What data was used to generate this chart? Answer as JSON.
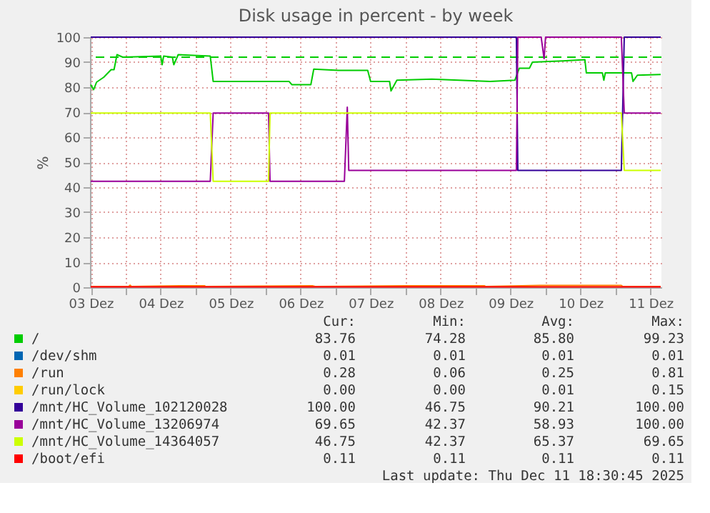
{
  "chart_data": {
    "type": "line",
    "title": "Disk usage in percent - by week",
    "ylabel": "%",
    "xlim": [
      "2025-12-03T11:45",
      "2025-12-11T15:45"
    ],
    "xticks": [
      {
        "value": "2025-12-03T12:00",
        "label": "03 Dez"
      },
      {
        "value": "2025-12-04T00:00",
        "label": null
      },
      {
        "value": "2025-12-04T12:00",
        "label": "04 Dez"
      },
      {
        "value": "2025-12-05T00:00",
        "label": null
      },
      {
        "value": "2025-12-05T12:00",
        "label": "05 Dez"
      },
      {
        "value": "2025-12-06T00:00",
        "label": null
      },
      {
        "value": "2025-12-06T12:00",
        "label": "06 Dez"
      },
      {
        "value": "2025-12-07T00:00",
        "label": null
      },
      {
        "value": "2025-12-07T12:00",
        "label": "07 Dez"
      },
      {
        "value": "2025-12-08T00:00",
        "label": null
      },
      {
        "value": "2025-12-08T12:00",
        "label": "08 Dez"
      },
      {
        "value": "2025-12-09T00:00",
        "label": null
      },
      {
        "value": "2025-12-09T12:00",
        "label": "09 Dez"
      },
      {
        "value": "2025-12-10T00:00",
        "label": null
      },
      {
        "value": "2025-12-10T12:00",
        "label": "10 Dez"
      },
      {
        "value": "2025-12-11T00:00",
        "label": null
      },
      {
        "value": "2025-12-11T12:00",
        "label": "11 Dez"
      }
    ],
    "ylim": [
      0,
      100
    ],
    "yticks": [
      0,
      10,
      20,
      30,
      40,
      50,
      60,
      70,
      80,
      90,
      100
    ],
    "grid": true,
    "legend": "bottom",
    "line_style": "solid",
    "marker": "none",
    "series": [
      {
        "name": "/",
        "color": "#00cc00",
        "x": [
          "2025-12-03T12:00",
          "2025-12-03T13:00",
          "2025-12-03T14:00",
          "2025-12-03T16:30",
          "2025-12-03T19:00",
          "2025-12-03T20:00",
          "2025-12-03T21:00",
          "2025-12-03T23:00",
          "2025-12-04T12:00",
          "2025-12-04T12:30",
          "2025-12-04T13:00",
          "2025-12-04T16:00",
          "2025-12-04T16:30",
          "2025-12-04T18:00",
          "2025-12-05T05:00",
          "2025-12-05T06:00",
          "2025-12-05T22:30",
          "2025-12-06T08:00",
          "2025-12-06T09:00",
          "2025-12-06T15:30",
          "2025-12-06T16:30",
          "2025-12-07T01:00",
          "2025-12-07T11:00",
          "2025-12-07T12:00",
          "2025-12-07T18:30",
          "2025-12-07T19:00",
          "2025-12-07T21:00",
          "2025-12-08T09:00",
          "2025-12-09T05:00",
          "2025-12-09T13:30",
          "2025-12-09T15:00",
          "2025-12-09T18:30",
          "2025-12-09T19:30",
          "2025-12-10T06:00",
          "2025-12-10T13:30",
          "2025-12-10T14:00",
          "2025-12-10T19:30",
          "2025-12-10T20:00",
          "2025-12-10T20:30",
          "2025-12-11T02:30",
          "2025-12-11T05:30",
          "2025-12-11T06:00",
          "2025-12-11T07:30",
          "2025-12-11T15:30"
        ],
        "values": [
          81,
          79,
          82,
          84,
          87,
          87,
          93,
          92,
          92.4,
          89,
          92.4,
          92,
          89,
          93,
          92.4,
          82.3,
          82.3,
          82.3,
          81,
          81,
          87.2,
          86.7,
          86.7,
          82.3,
          82.3,
          78.5,
          82.8,
          83.2,
          82.3,
          82.8,
          87.6,
          87.6,
          90,
          90.5,
          91,
          85.7,
          85.7,
          82.8,
          85.7,
          85.7,
          85.7,
          82.3,
          84.8,
          85.1
        ]
      },
      {
        "name": "/dev/shm",
        "color": "#0066b3"
      },
      {
        "name": "/run",
        "color": "#ff8000",
        "x": [
          "2025-12-03T12:00",
          "2025-12-04T01:00",
          "2025-12-04T01:30",
          "2025-12-04T02:00",
          "2025-12-04T18:30",
          "2025-12-05T03:00",
          "2025-12-05T03:30",
          "2025-12-06T16:00",
          "2025-12-06T17:00",
          "2025-12-08T00:00",
          "2025-12-09T03:00",
          "2025-12-09T03:30",
          "2025-12-09T22:00",
          "2025-12-11T02:00",
          "2025-12-11T02:30",
          "2025-12-11T15:30"
        ],
        "values": [
          0.28,
          0.28,
          0.81,
          0.28,
          0.6,
          0.6,
          0.28,
          0.6,
          0.28,
          0.6,
          0.6,
          0.28,
          0.7,
          0.7,
          0.28,
          0.28
        ]
      },
      {
        "name": "/run/lock",
        "color": "#ffcc00"
      },
      {
        "name": "/mnt/HC_Volume_102120028",
        "color": "#330099",
        "x": [
          "2025-12-03T12:00",
          "2025-12-09T14:00",
          "2025-12-09T14:30",
          "2025-12-11T02:00",
          "2025-12-11T03:00",
          "2025-12-11T15:30"
        ],
        "values": [
          100,
          100,
          46.75,
          46.75,
          100,
          100
        ]
      },
      {
        "name": "/mnt/HC_Volume_13206974",
        "color": "#990099",
        "x": [
          "2025-12-03T12:00",
          "2025-12-05T05:00",
          "2025-12-05T06:00",
          "2025-12-06T01:00",
          "2025-12-06T01:30",
          "2025-12-07T03:00",
          "2025-12-07T04:00",
          "2025-12-07T04:30",
          "2025-12-09T14:00",
          "2025-12-09T14:30",
          "2025-12-09T22:30",
          "2025-12-09T23:30",
          "2025-12-10T00:00",
          "2025-12-11T02:00",
          "2025-12-11T03:00",
          "2025-12-11T15:30"
        ],
        "values": [
          42.37,
          42.37,
          69.65,
          69.65,
          42.37,
          42.37,
          72,
          46.75,
          46.75,
          100,
          100,
          91.4,
          100,
          100,
          69.65,
          69.65
        ]
      },
      {
        "name": "/mnt/HC_Volume_14364057",
        "color": "#ccff00",
        "x": [
          "2025-12-03T12:00",
          "2025-12-05T05:00",
          "2025-12-05T06:00",
          "2025-12-06T01:00",
          "2025-12-06T01:30",
          "2025-12-11T02:00",
          "2025-12-11T03:00",
          "2025-12-11T15:30"
        ],
        "values": [
          69.65,
          69.65,
          42.37,
          42.37,
          69.65,
          69.65,
          46.75,
          46.75
        ]
      },
      {
        "name": "/boot/efi",
        "color": "#ff0000",
        "x": [
          "2025-12-03T12:00",
          "2025-12-11T15:30"
        ],
        "values": [
          0.11,
          0.11
        ]
      }
    ],
    "ref_lines": [
      {
        "axis": "y",
        "value": 92,
        "label": null,
        "color": "#00cc00",
        "line_style": "dashed"
      }
    ],
    "annotations": [
      "Cur:",
      "Min:",
      "Avg:",
      "Max:",
      "83.76",
      "74.28",
      "85.80",
      "99.23",
      "0.01",
      "0.01",
      "0.01",
      "0.01",
      "0.28",
      "0.06",
      "0.25",
      "0.81",
      "0.00",
      "0.00",
      "0.01",
      "0.15",
      "100.00",
      "46.75",
      "90.21",
      "100.00",
      "69.65",
      "42.37",
      "58.93",
      "100.00",
      "46.75",
      "42.37",
      "65.37",
      "69.65",
      "0.11",
      "0.11",
      "0.11",
      "0.11",
      "Last update: Thu Dec 11 18:30:45 2025"
    ]
  }
}
